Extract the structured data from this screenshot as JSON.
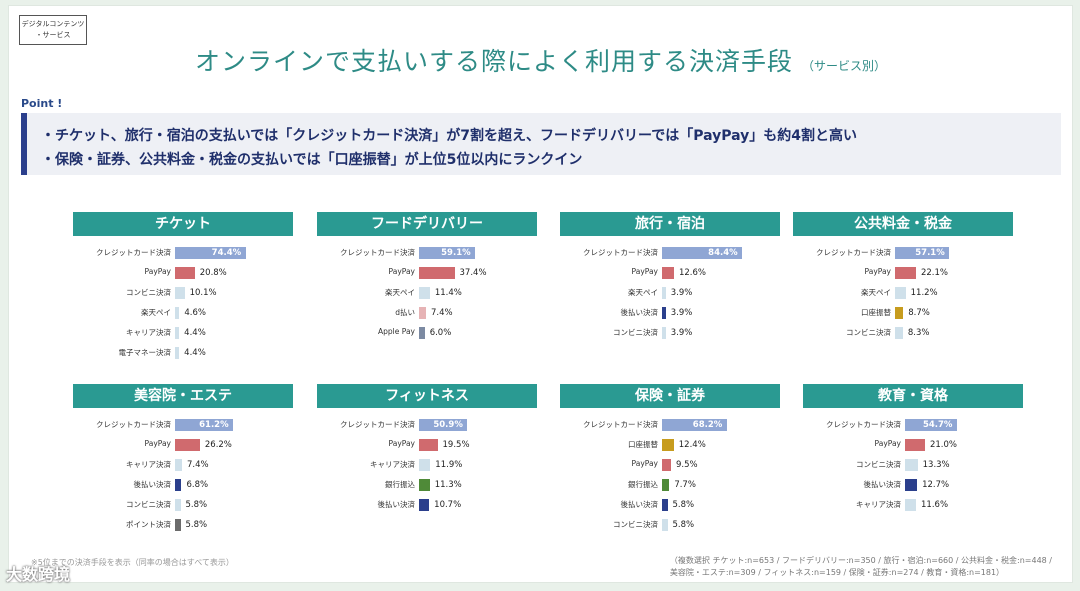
{
  "tag": {
    "line1": "デジタルコンテンツ",
    "line2": "・サービス"
  },
  "title": "オンラインで支払いする際によく利用する決済手段",
  "title_sub": "（サービス別）",
  "point": {
    "label": "Point !",
    "line1": "・チケット、旅行・宿泊の支払いでは「クレジットカード決済」が7割を超え、フードデリバリーでは「PayPay」も約4割と高い",
    "line2": "・保険・証券、公共料金・税金の支払いでは「口座振替」が上位5位以内にランクイン"
  },
  "colors": {
    "credit": "#8fa6d4",
    "paypay": "#d06a6e",
    "light": "#cfe0ea",
    "navy": "#2b3f8c",
    "green": "#4f8a38",
    "gold": "#c79c1e",
    "gray": "#6b6b6b",
    "pink": "#e6b3b5",
    "slate": "#7c8aa2",
    "header": "#2a9a92"
  },
  "chart_data": [
    {
      "type": "bar",
      "title": "チケット",
      "categories": [
        "クレジットカード決済",
        "PayPay",
        "コンビニ決済",
        "楽天ペイ",
        "キャリア決済",
        "電子マネー決済"
      ],
      "values": [
        74.4,
        20.8,
        10.1,
        4.6,
        4.4,
        4.4
      ],
      "colors": [
        "credit",
        "paypay",
        "light",
        "light",
        "light",
        "light"
      ]
    },
    {
      "type": "bar",
      "title": "フードデリバリー",
      "categories": [
        "クレジットカード決済",
        "PayPay",
        "楽天ペイ",
        "d払い",
        "Apple Pay"
      ],
      "values": [
        59.1,
        37.4,
        11.4,
        7.4,
        6.0
      ],
      "colors": [
        "credit",
        "paypay",
        "light",
        "pink",
        "slate"
      ]
    },
    {
      "type": "bar",
      "title": "旅行・宿泊",
      "categories": [
        "クレジットカード決済",
        "PayPay",
        "楽天ペイ",
        "後払い決済",
        "コンビニ決済"
      ],
      "values": [
        84.4,
        12.6,
        3.9,
        3.9,
        3.9
      ],
      "colors": [
        "credit",
        "paypay",
        "light",
        "navy",
        "light"
      ]
    },
    {
      "type": "bar",
      "title": "公共料金・税金",
      "categories": [
        "クレジットカード決済",
        "PayPay",
        "楽天ペイ",
        "口座振替",
        "コンビニ決済"
      ],
      "values": [
        57.1,
        22.1,
        11.2,
        8.7,
        8.3
      ],
      "colors": [
        "credit",
        "paypay",
        "light",
        "gold",
        "light"
      ]
    },
    {
      "type": "bar",
      "title": "美容院・エステ",
      "categories": [
        "クレジットカード決済",
        "PayPay",
        "キャリア決済",
        "後払い決済",
        "コンビニ決済",
        "ポイント決済"
      ],
      "values": [
        61.2,
        26.2,
        7.4,
        6.8,
        5.8,
        5.8
      ],
      "colors": [
        "credit",
        "paypay",
        "light",
        "navy",
        "light",
        "gray"
      ]
    },
    {
      "type": "bar",
      "title": "フィットネス",
      "categories": [
        "クレジットカード決済",
        "PayPay",
        "キャリア決済",
        "銀行振込",
        "後払い決済"
      ],
      "values": [
        50.9,
        19.5,
        11.9,
        11.3,
        10.7
      ],
      "colors": [
        "credit",
        "paypay",
        "light",
        "green",
        "navy"
      ]
    },
    {
      "type": "bar",
      "title": "保険・証券",
      "categories": [
        "クレジットカード決済",
        "口座振替",
        "PayPay",
        "銀行振込",
        "後払い決済",
        "コンビニ決済"
      ],
      "values": [
        68.2,
        12.4,
        9.5,
        7.7,
        5.8,
        5.8
      ],
      "colors": [
        "credit",
        "gold",
        "paypay",
        "green",
        "navy",
        "light"
      ]
    },
    {
      "type": "bar",
      "title": "教育・資格",
      "categories": [
        "クレジットカード決済",
        "PayPay",
        "コンビニ決済",
        "後払い決済",
        "キャリア決済"
      ],
      "values": [
        54.7,
        21.0,
        13.3,
        12.7,
        11.6
      ],
      "colors": [
        "credit",
        "paypay",
        "light",
        "navy",
        "light"
      ]
    }
  ],
  "footnote_left": "※5位までの決済手段を表示（同率の場合はすべて表示）",
  "footnote_right": {
    "line1": "（複数選択 チケット:n=653 / フードデリバリー:n=350 / 旅行・宿泊:n=660 / 公共料金・税金:n=448 /",
    "line2": "美容院・エステ:n=309 / フィットネス:n=159 / 保険・証券:n=274 / 教育・資格:n=181）"
  },
  "watermark": "大数跨境"
}
